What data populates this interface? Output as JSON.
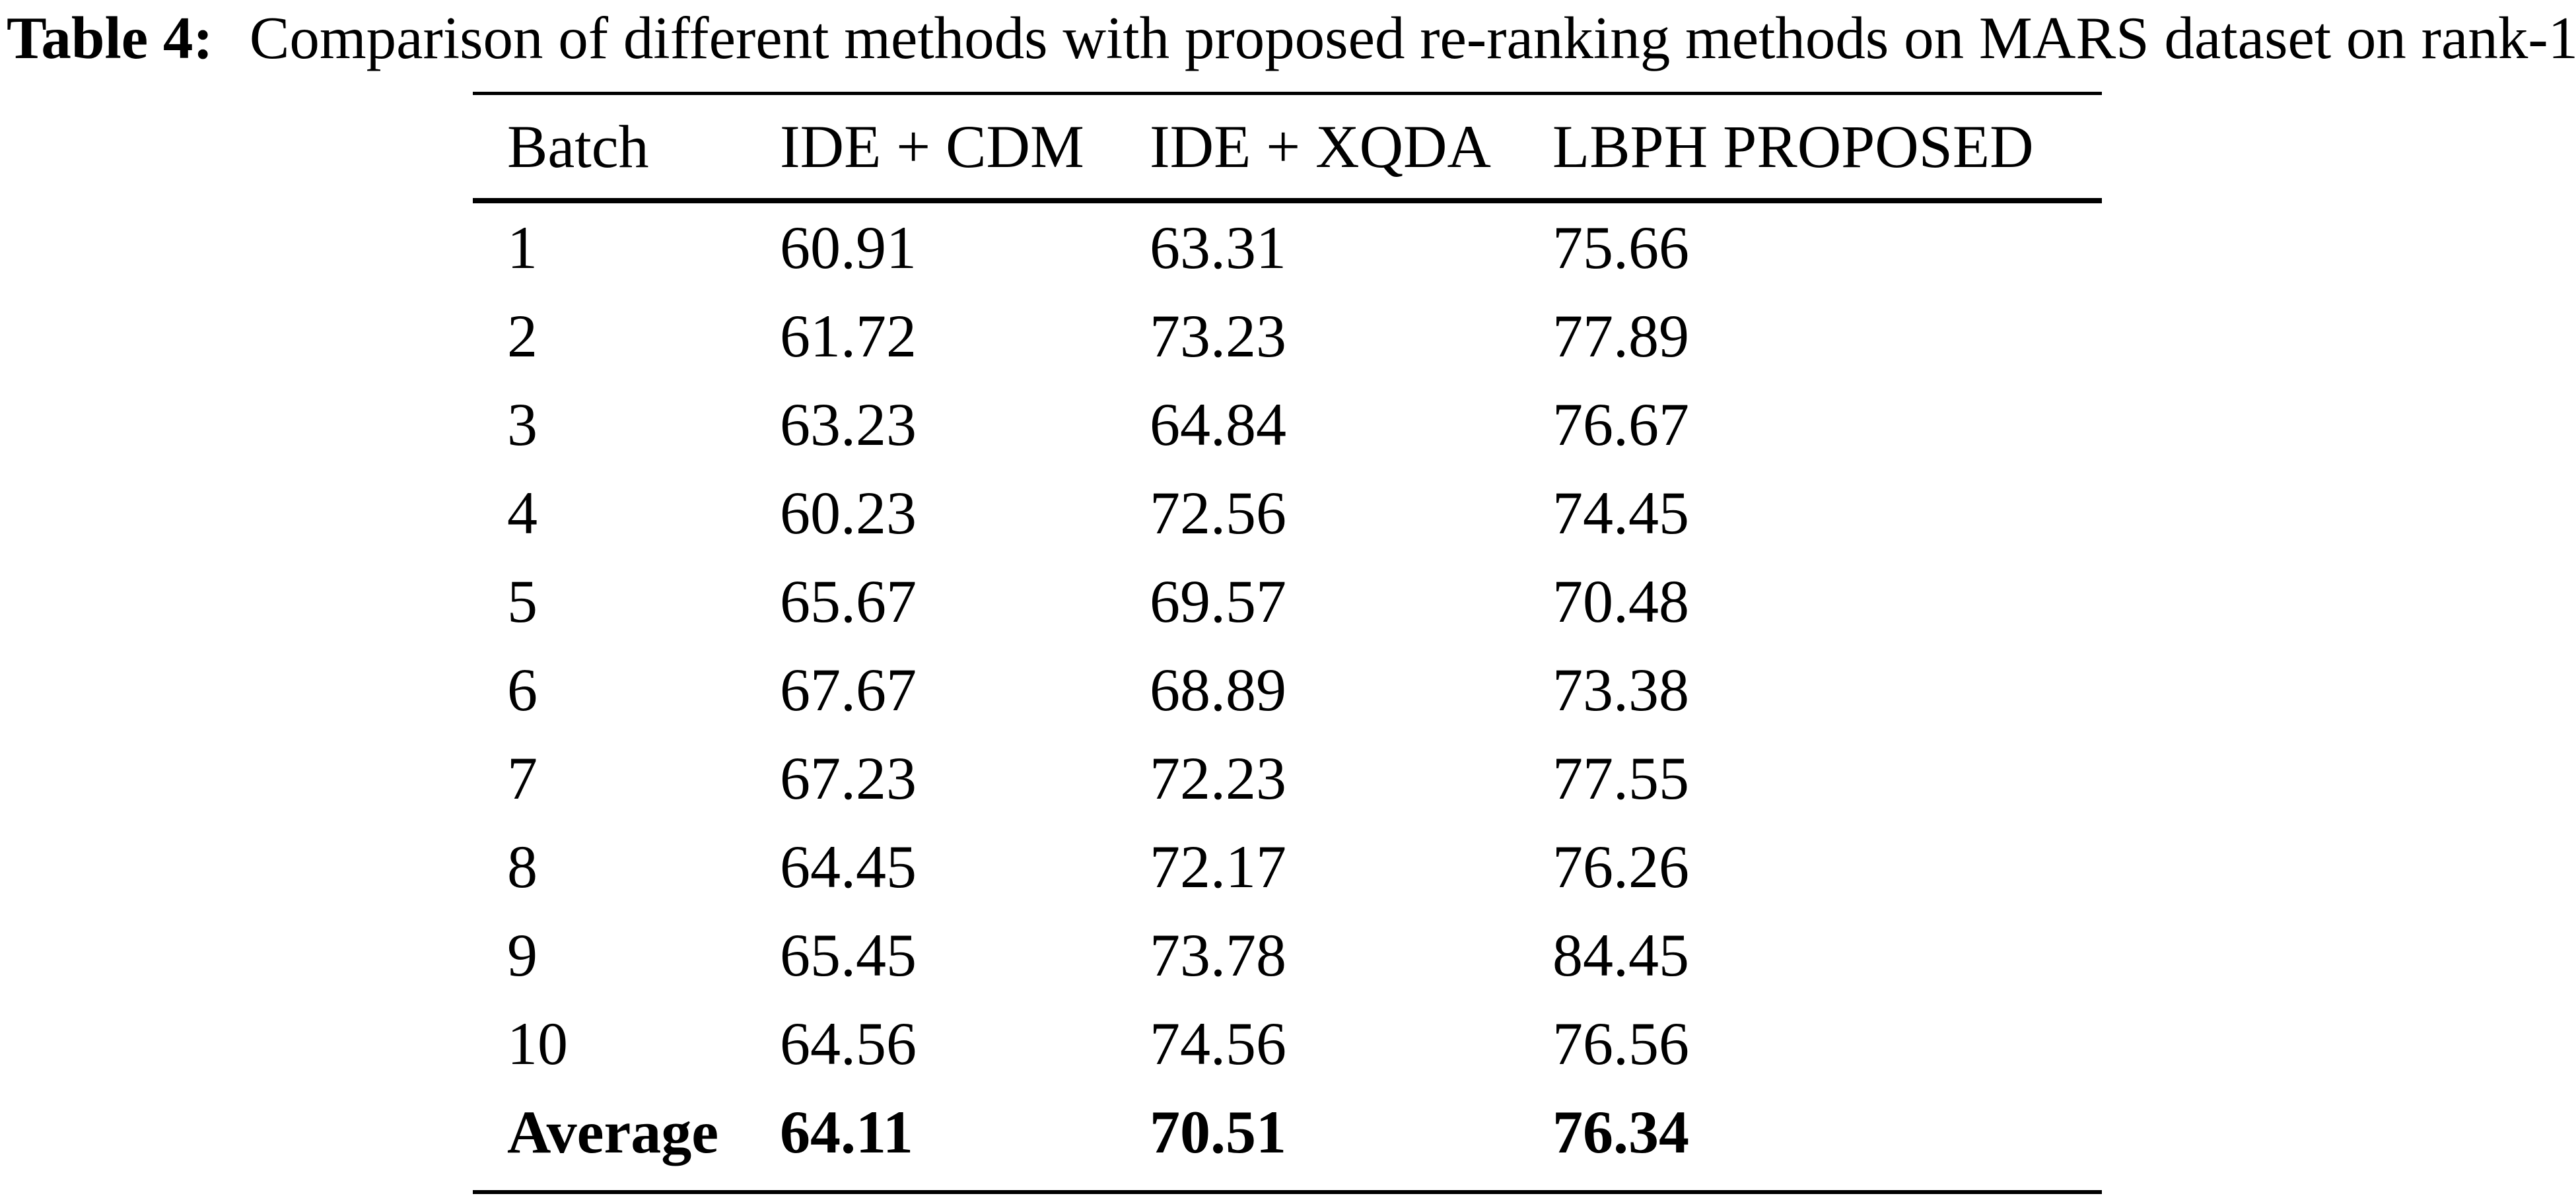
{
  "page": {
    "background": "#ffffff",
    "text_color": "#000000",
    "rule_color": "#000000"
  },
  "caption": {
    "label": "Table 4:",
    "text": "Comparison of different methods with proposed re-ranking methods on MARS dataset on rank-1"
  },
  "table": {
    "columns": [
      "Batch",
      "IDE + CDM",
      "IDE + XQDA",
      "LBPH PROPOSED"
    ],
    "rows": [
      {
        "batch": "1",
        "values": [
          "60.91",
          "63.31",
          "75.66"
        ],
        "bold": false
      },
      {
        "batch": "2",
        "values": [
          "61.72",
          "73.23",
          "77.89"
        ],
        "bold": false
      },
      {
        "batch": "3",
        "values": [
          "63.23",
          "64.84",
          "76.67"
        ],
        "bold": false
      },
      {
        "batch": "4",
        "values": [
          "60.23",
          "72.56",
          "74.45"
        ],
        "bold": false
      },
      {
        "batch": "5",
        "values": [
          "65.67",
          "69.57",
          "70.48"
        ],
        "bold": false
      },
      {
        "batch": "6",
        "values": [
          "67.67",
          "68.89",
          "73.38"
        ],
        "bold": false
      },
      {
        "batch": "7",
        "values": [
          "67.23",
          "72.23",
          "77.55"
        ],
        "bold": false
      },
      {
        "batch": "8",
        "values": [
          "64.45",
          "72.17",
          "76.26"
        ],
        "bold": false
      },
      {
        "batch": "9",
        "values": [
          "65.45",
          "73.78",
          "84.45"
        ],
        "bold": false
      },
      {
        "batch": "10",
        "values": [
          "64.56",
          "74.56",
          "76.56"
        ],
        "bold": false
      },
      {
        "batch": "Average",
        "values": [
          "64.11",
          "70.51",
          "76.34"
        ],
        "bold": true
      }
    ]
  }
}
